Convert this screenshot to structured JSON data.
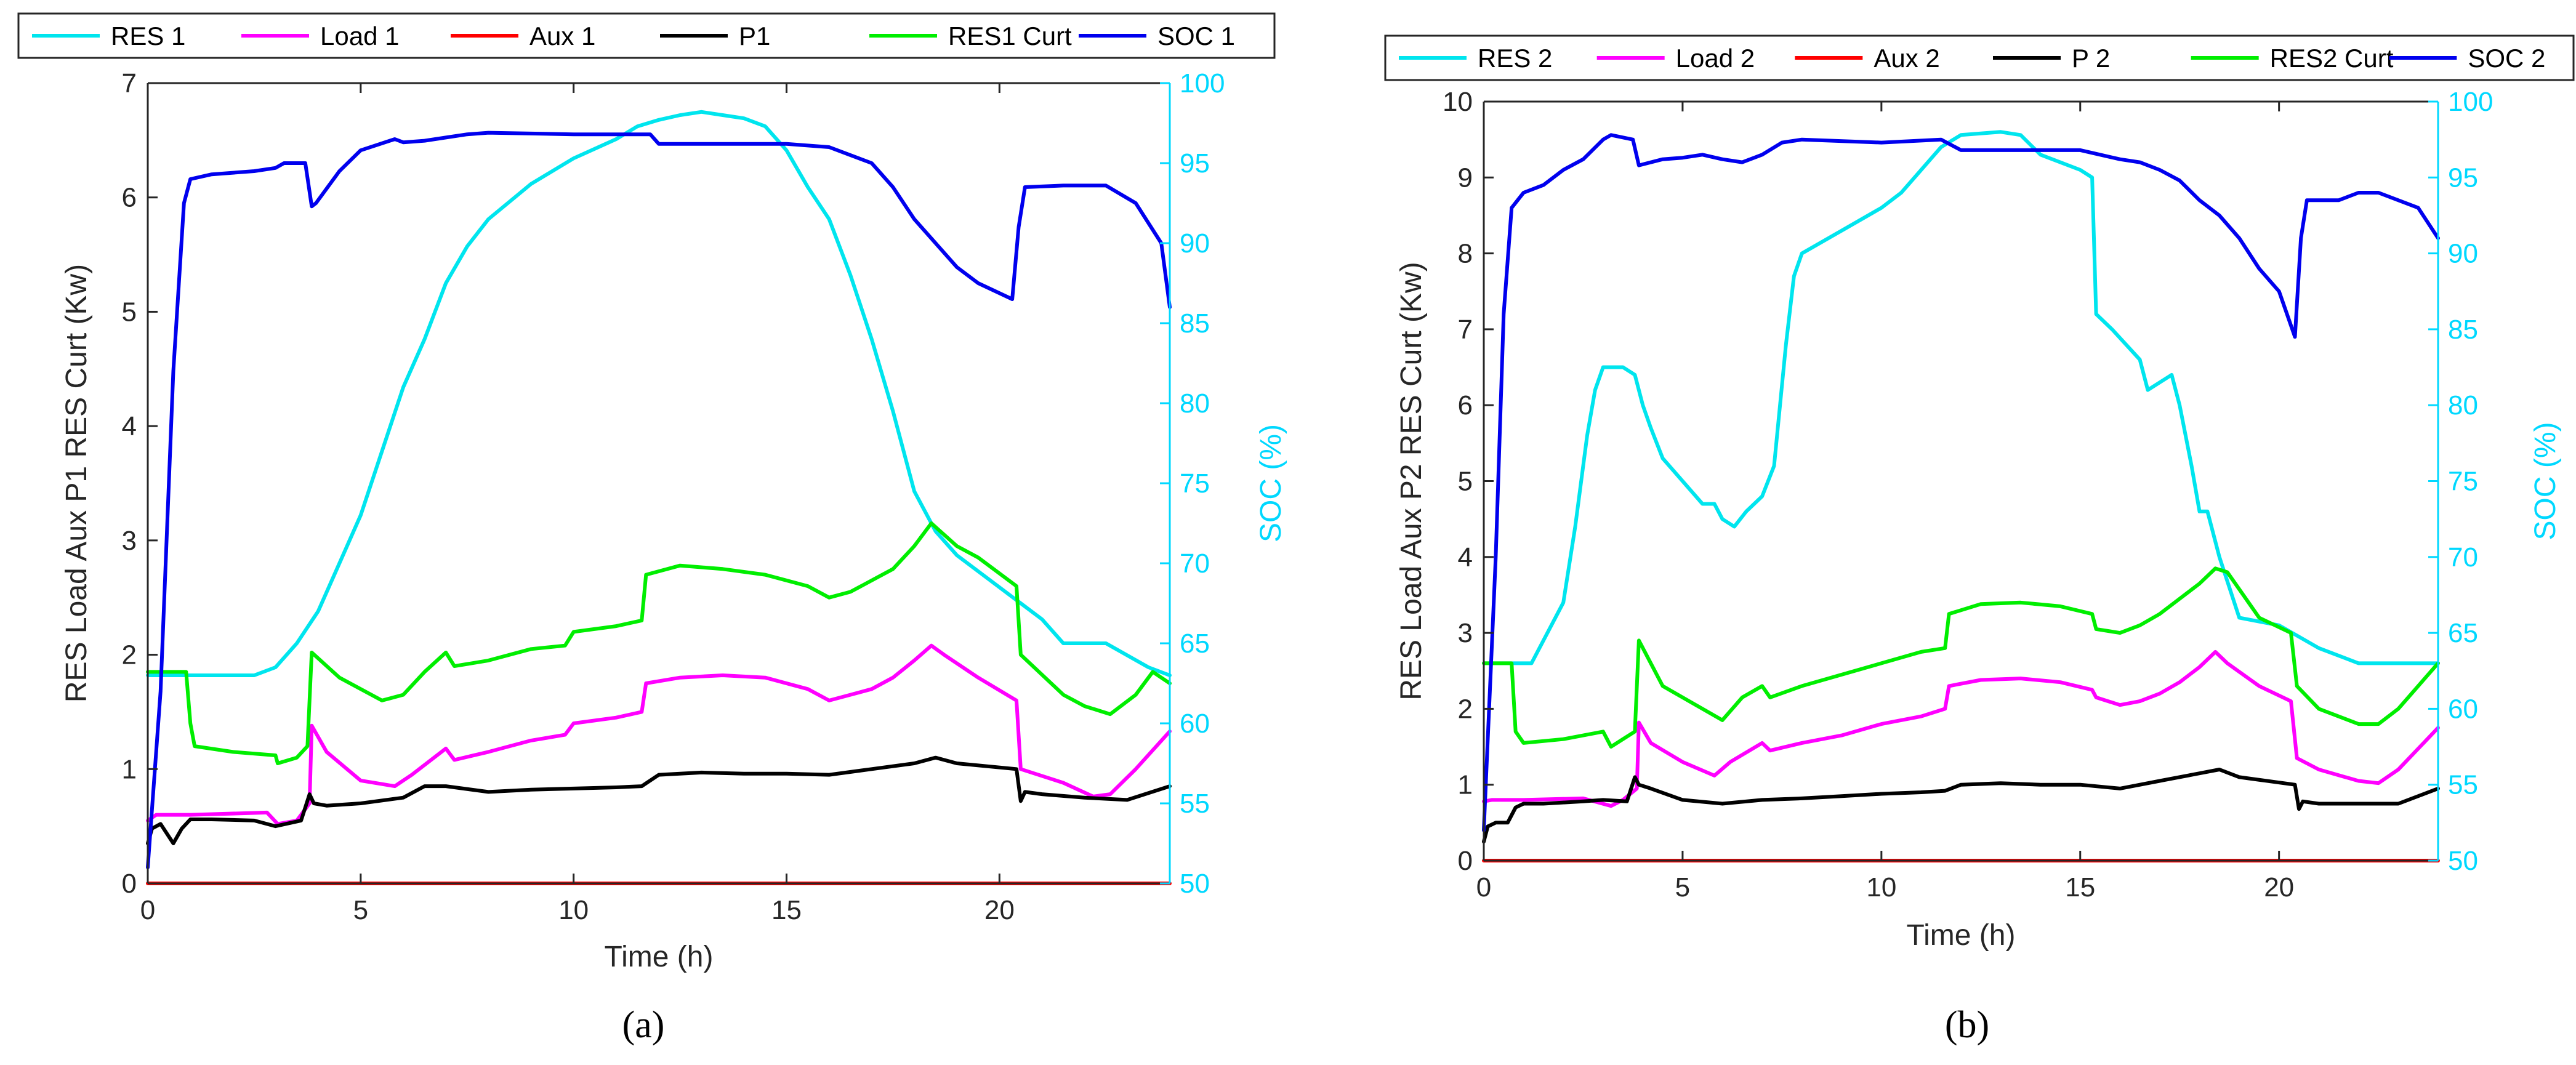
{
  "chart_data": [
    {
      "type": "line",
      "panel_label": "(a)",
      "xlabel": "Time (h)",
      "ylabel": "RES Load Aux P1 RES Curt (Kw)",
      "ylabel_right": "SOC (%)",
      "xlim": [
        0,
        24
      ],
      "ylim": [
        0,
        7
      ],
      "ylim_right": [
        50,
        100
      ],
      "xticks": [
        0,
        5,
        10,
        15,
        20
      ],
      "yticks": [
        0,
        1,
        2,
        3,
        4,
        5,
        6,
        7
      ],
      "yticks_right": [
        50,
        55,
        60,
        65,
        70,
        75,
        80,
        85,
        90,
        95,
        100
      ],
      "legend": [
        "RES 1",
        "Load 1",
        "Aux 1",
        "P1",
        "RES1 Curt",
        "SOC 1"
      ],
      "series": [
        {
          "name": "RES 1",
          "color": "#00e5ee",
          "axis": "right",
          "x": [
            0,
            2.5,
            3,
            3.5,
            4,
            4.5,
            5,
            5.5,
            6,
            6.5,
            7,
            7.5,
            8,
            9,
            10,
            11,
            11.5,
            12,
            12.5,
            13,
            13.5,
            14,
            14.5,
            15,
            15.5,
            16,
            16.5,
            17,
            17.5,
            18,
            18.5,
            19,
            20,
            21,
            21.5,
            22.5,
            23.5,
            24
          ],
          "y": [
            63,
            63,
            63.5,
            65,
            67,
            70,
            73,
            77,
            81,
            84,
            87.5,
            89.8,
            91.5,
            93.7,
            95.3,
            96.5,
            97.3,
            97.7,
            98,
            98.2,
            98,
            97.8,
            97.3,
            95.8,
            93.5,
            91.5,
            88,
            84,
            79.5,
            74.5,
            72,
            70.5,
            68.5,
            66.5,
            65,
            65,
            63.5,
            63
          ]
        },
        {
          "name": "Load 1",
          "color": "#ff00ff",
          "axis": "left",
          "x": [
            0,
            0.2,
            1,
            2.8,
            3.05,
            3.5,
            3.8,
            3.85,
            4.2,
            5,
            5.8,
            6.2,
            7,
            7.2,
            8,
            9,
            9.8,
            10,
            11,
            11.6,
            11.7,
            12.5,
            13.5,
            14.5,
            15.5,
            16,
            16.5,
            17,
            17.5,
            18,
            18.4,
            18.7,
            19.5,
            20.4,
            20.5,
            21.5,
            22.2,
            22.6,
            23.2,
            24
          ],
          "y": [
            0.55,
            0.6,
            0.6,
            0.62,
            0.52,
            0.55,
            0.7,
            1.38,
            1.15,
            0.9,
            0.85,
            0.95,
            1.18,
            1.08,
            1.15,
            1.25,
            1.3,
            1.4,
            1.45,
            1.5,
            1.75,
            1.8,
            1.82,
            1.8,
            1.7,
            1.6,
            1.65,
            1.7,
            1.8,
            1.95,
            2.08,
            2.0,
            1.8,
            1.6,
            1.0,
            0.88,
            0.76,
            0.78,
            1.0,
            1.33
          ]
        },
        {
          "name": "Aux 1",
          "color": "#ff0000",
          "axis": "left",
          "x": [
            0,
            24
          ],
          "y": [
            0,
            0
          ]
        },
        {
          "name": "P1",
          "color": "#000000",
          "axis": "left",
          "x": [
            0,
            0.1,
            0.3,
            0.6,
            0.8,
            1,
            1.5,
            2.5,
            3,
            3.6,
            3.8,
            3.9,
            4.2,
            5,
            6,
            6.5,
            7,
            8,
            9,
            10,
            11,
            11.6,
            12,
            13,
            14,
            15,
            16,
            17,
            18,
            18.5,
            19,
            20.4,
            20.5,
            20.6,
            21,
            22,
            23,
            24
          ],
          "y": [
            0.35,
            0.48,
            0.52,
            0.35,
            0.48,
            0.56,
            0.56,
            0.55,
            0.5,
            0.55,
            0.78,
            0.7,
            0.68,
            0.7,
            0.75,
            0.85,
            0.85,
            0.8,
            0.82,
            0.83,
            0.84,
            0.85,
            0.95,
            0.97,
            0.96,
            0.96,
            0.95,
            1.0,
            1.05,
            1.1,
            1.05,
            1.0,
            0.72,
            0.8,
            0.78,
            0.75,
            0.73,
            0.85
          ]
        },
        {
          "name": "RES1 Curt",
          "color": "#00ee00",
          "axis": "left",
          "x": [
            0,
            0.9,
            1.0,
            1.1,
            2,
            3,
            3.05,
            3.5,
            3.75,
            3.85,
            4.5,
            5.5,
            6,
            6.5,
            7,
            7.2,
            8,
            9,
            9.8,
            10,
            11,
            11.6,
            11.7,
            12.5,
            13.5,
            14.5,
            15.5,
            16,
            16.5,
            17,
            17.5,
            18,
            18.4,
            19,
            19.5,
            20.4,
            20.5,
            21.5,
            22,
            22.6,
            23.2,
            23.6,
            24
          ],
          "y": [
            1.85,
            1.85,
            1.4,
            1.2,
            1.15,
            1.12,
            1.05,
            1.1,
            1.2,
            2.02,
            1.8,
            1.6,
            1.65,
            1.85,
            2.02,
            1.9,
            1.95,
            2.05,
            2.08,
            2.2,
            2.25,
            2.3,
            2.7,
            2.78,
            2.75,
            2.7,
            2.6,
            2.5,
            2.55,
            2.65,
            2.75,
            2.95,
            3.15,
            2.95,
            2.85,
            2.6,
            2.0,
            1.65,
            1.55,
            1.48,
            1.65,
            1.85,
            1.75
          ]
        },
        {
          "name": "SOC 1",
          "color": "#0000ee",
          "axis": "right",
          "x": [
            0,
            0.3,
            0.6,
            0.85,
            1,
            1.5,
            2.5,
            3,
            3.2,
            3.7,
            3.85,
            3.95,
            4.5,
            5,
            5.8,
            6,
            6.5,
            7,
            7.5,
            8,
            10,
            11.8,
            12,
            15,
            16,
            17,
            17.5,
            18,
            18.5,
            19,
            19.5,
            20.3,
            20.45,
            20.6,
            21.5,
            22.5,
            23.2,
            23.8,
            24
          ],
          "y": [
            51,
            62,
            82,
            92.5,
            94,
            94.3,
            94.5,
            94.7,
            95,
            95,
            92.3,
            92.5,
            94.5,
            95.8,
            96.5,
            96.3,
            96.4,
            96.6,
            96.8,
            96.9,
            96.8,
            96.8,
            96.2,
            96.2,
            96,
            95,
            93.5,
            91.5,
            90,
            88.5,
            87.5,
            86.5,
            91,
            93.5,
            93.6,
            93.6,
            92.5,
            90,
            86
          ]
        }
      ]
    },
    {
      "type": "line",
      "panel_label": "(b)",
      "xlabel": "Time (h)",
      "ylabel": "RES Load Aux P2 RES Curt (Kw)",
      "ylabel_right": "SOC (%)",
      "xlim": [
        0,
        24
      ],
      "ylim": [
        0,
        10
      ],
      "ylim_right": [
        50,
        100
      ],
      "xticks": [
        0,
        5,
        10,
        15,
        20
      ],
      "yticks": [
        0,
        1,
        2,
        3,
        4,
        5,
        6,
        7,
        8,
        9,
        10
      ],
      "yticks_right": [
        50,
        55,
        60,
        65,
        70,
        75,
        80,
        85,
        90,
        95,
        100
      ],
      "legend": [
        "RES 2",
        "Load 2",
        "Aux 2",
        "P 2",
        "RES2 Curt",
        "SOC 2"
      ],
      "series": [
        {
          "name": "RES 2",
          "color": "#00e5ee",
          "axis": "right",
          "x": [
            0,
            1.2,
            1.5,
            2,
            2.3,
            2.6,
            2.8,
            3.0,
            3.5,
            3.8,
            4.0,
            4.2,
            4.5,
            5.0,
            5.5,
            5.8,
            6.0,
            6.3,
            6.6,
            7.0,
            7.3,
            7.6,
            7.8,
            8.0,
            9,
            10,
            10.5,
            11,
            11.5,
            12,
            13,
            13.5,
            14,
            15,
            15.3,
            15.4,
            15.8,
            16.5,
            16.7,
            17.3,
            17.5,
            17.8,
            18,
            18.2,
            18.5,
            19,
            20,
            21,
            22,
            23,
            24
          ],
          "y": [
            63,
            63,
            64.5,
            67,
            72,
            78,
            81,
            82.5,
            82.5,
            82,
            80,
            78.5,
            76.5,
            75,
            73.5,
            73.5,
            72.5,
            72,
            73,
            74,
            76,
            84,
            88.5,
            90,
            91.5,
            93,
            94,
            95.5,
            97,
            97.8,
            98,
            97.8,
            96.5,
            95.5,
            95,
            86,
            85,
            83,
            81,
            82,
            80,
            76,
            73,
            73,
            70,
            66,
            65.5,
            64,
            63,
            63,
            63
          ]
        },
        {
          "name": "Load 2",
          "color": "#ff00ff",
          "axis": "left",
          "x": [
            0,
            0.2,
            1,
            2.5,
            3.2,
            3.5,
            3.85,
            3.9,
            4.2,
            5,
            5.8,
            6.2,
            7,
            7.2,
            8,
            9,
            10,
            11,
            11.6,
            11.7,
            12.5,
            13.5,
            14.5,
            15.3,
            15.4,
            16,
            16.5,
            17,
            17.5,
            18,
            18.4,
            18.7,
            19.5,
            20.3,
            20.45,
            21,
            22,
            22.5,
            23,
            24
          ],
          "y": [
            0.78,
            0.8,
            0.8,
            0.82,
            0.72,
            0.8,
            0.95,
            1.82,
            1.55,
            1.3,
            1.12,
            1.3,
            1.55,
            1.45,
            1.55,
            1.65,
            1.8,
            1.9,
            2.0,
            2.3,
            2.38,
            2.4,
            2.35,
            2.25,
            2.15,
            2.05,
            2.1,
            2.2,
            2.35,
            2.55,
            2.75,
            2.6,
            2.3,
            2.1,
            1.35,
            1.2,
            1.05,
            1.02,
            1.2,
            1.75
          ]
        },
        {
          "name": "Aux 2",
          "color": "#ff0000",
          "axis": "left",
          "x": [
            0,
            24
          ],
          "y": [
            0,
            0
          ]
        },
        {
          "name": "P 2",
          "color": "#000000",
          "axis": "left",
          "x": [
            0,
            0.1,
            0.3,
            0.6,
            0.8,
            1,
            1.5,
            2.5,
            3,
            3.6,
            3.8,
            3.9,
            4.2,
            5,
            6,
            7,
            8,
            9,
            10,
            11,
            11.6,
            12,
            13,
            14,
            15,
            16,
            17,
            18,
            18.5,
            19,
            20.4,
            20.5,
            20.6,
            21,
            22,
            23,
            24
          ],
          "y": [
            0.25,
            0.45,
            0.5,
            0.5,
            0.7,
            0.75,
            0.75,
            0.78,
            0.8,
            0.78,
            1.1,
            1.0,
            0.95,
            0.8,
            0.75,
            0.8,
            0.82,
            0.85,
            0.88,
            0.9,
            0.92,
            1.0,
            1.02,
            1.0,
            1.0,
            0.95,
            1.05,
            1.15,
            1.2,
            1.1,
            1.0,
            0.68,
            0.78,
            0.75,
            0.75,
            0.75,
            0.95
          ]
        },
        {
          "name": "RES2 Curt",
          "color": "#00ee00",
          "axis": "left",
          "x": [
            0,
            0.7,
            0.8,
            1,
            2,
            3,
            3.2,
            3.5,
            3.8,
            3.9,
            4.5,
            5.5,
            6,
            6.5,
            7,
            7.2,
            8,
            9,
            10,
            11,
            11.6,
            11.7,
            12.5,
            13.5,
            14.5,
            15.3,
            15.4,
            16,
            16.5,
            17,
            17.5,
            18,
            18.4,
            18.7,
            19.5,
            20.3,
            20.45,
            21,
            22,
            22.5,
            23,
            24
          ],
          "y": [
            2.6,
            2.6,
            1.7,
            1.55,
            1.6,
            1.7,
            1.5,
            1.6,
            1.7,
            2.9,
            2.3,
            2.0,
            1.85,
            2.15,
            2.3,
            2.15,
            2.3,
            2.45,
            2.6,
            2.75,
            2.8,
            3.25,
            3.38,
            3.4,
            3.35,
            3.25,
            3.05,
            3.0,
            3.1,
            3.25,
            3.45,
            3.65,
            3.85,
            3.8,
            3.2,
            3.0,
            2.3,
            2.0,
            1.8,
            1.8,
            2.0,
            2.6
          ]
        },
        {
          "name": "SOC 2",
          "color": "#0000ee",
          "axis": "right",
          "x": [
            0,
            0.3,
            0.5,
            0.7,
            1,
            1.5,
            2,
            2.5,
            3,
            3.2,
            3.75,
            3.9,
            4.5,
            5,
            5.5,
            6,
            6.5,
            7,
            7.5,
            8,
            10,
            11.5,
            12,
            14,
            15,
            15.5,
            16,
            16.5,
            17,
            17.5,
            18,
            18.5,
            19,
            19.5,
            20,
            20.4,
            20.55,
            20.7,
            21.5,
            22,
            22.5,
            23.5,
            24
          ],
          "y": [
            52,
            70,
            86,
            93,
            94,
            94.5,
            95.5,
            96.2,
            97.5,
            97.8,
            97.5,
            95.8,
            96.2,
            96.3,
            96.5,
            96.2,
            96,
            96.5,
            97.3,
            97.5,
            97.3,
            97.5,
            96.8,
            96.8,
            96.8,
            96.5,
            96.2,
            96,
            95.5,
            94.8,
            93.5,
            92.5,
            91,
            89,
            87.5,
            84.5,
            91,
            93.5,
            93.5,
            94,
            94,
            93,
            91
          ]
        }
      ]
    }
  ]
}
